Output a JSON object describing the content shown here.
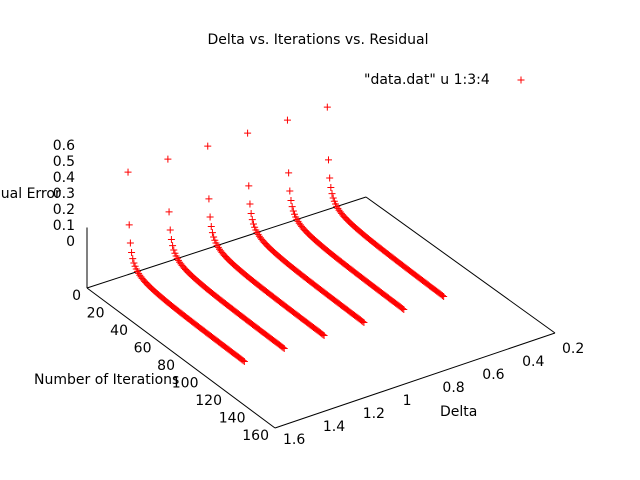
{
  "chart_data": {
    "type": "scatter",
    "title": "Delta vs. Iterations vs. Residual",
    "xlabel": "Delta",
    "ylabel": "Number of Iterations",
    "zlabel": "Residual Error",
    "xlim": [
      0.2,
      1.6
    ],
    "ylim": [
      0,
      160
    ],
    "zlim": [
      0,
      0.6
    ],
    "x_ticks": [
      "0.2",
      "0.4",
      "0.6",
      "0.8",
      "1",
      "1.2",
      "1.4",
      "1.6"
    ],
    "y_ticks": [
      "0",
      "20",
      "40",
      "60",
      "80",
      "100",
      "120",
      "140",
      "160"
    ],
    "z_ticks": [
      "0",
      "0.1",
      "0.2",
      "0.3",
      "0.4",
      "0.5",
      "0.6"
    ],
    "legend_position": "top-right",
    "grid": false,
    "series": [
      {
        "name": "\"data.dat\" u 1:3:4",
        "color": "#ff0000",
        "marker": "plus",
        "deltas": [
          0.4,
          0.6,
          0.8,
          1.0,
          1.2,
          1.4
        ],
        "iterations_range": [
          1,
          100
        ],
        "residual_model": "0.6 / iteration",
        "points_per_delta": 100
      }
    ]
  }
}
